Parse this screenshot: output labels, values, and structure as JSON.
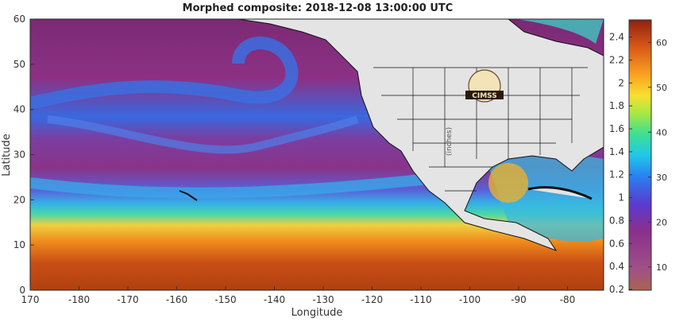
{
  "title": "Morphed composite: 2018-12-08 13:00:00 UTC",
  "xlabel": "Longitude",
  "ylabel": "Latitude",
  "x_ticks": [
    170,
    -180,
    -170,
    -160,
    -150,
    -140,
    -130,
    -120,
    -110,
    -100,
    -90,
    -80
  ],
  "y_ticks": [
    0,
    10,
    20,
    30,
    40,
    50,
    60
  ],
  "colorbar_inches_ticks": [
    0.2,
    0.4,
    0.6,
    0.8,
    1,
    1.2,
    1.4,
    1.6,
    1.8,
    2,
    2.2,
    2.4
  ],
  "colorbar_mm_ticks": [
    10,
    20,
    30,
    40,
    50,
    60
  ],
  "colorbar_unit": "(inches)",
  "logo_text": "CIMSS",
  "colors": {
    "land": "#e4e4e4",
    "ocean_dry": "#8a2f82",
    "ocean_moist": "#3a7ae0",
    "ocean_wet": "#c85018",
    "border": "#111111"
  }
}
